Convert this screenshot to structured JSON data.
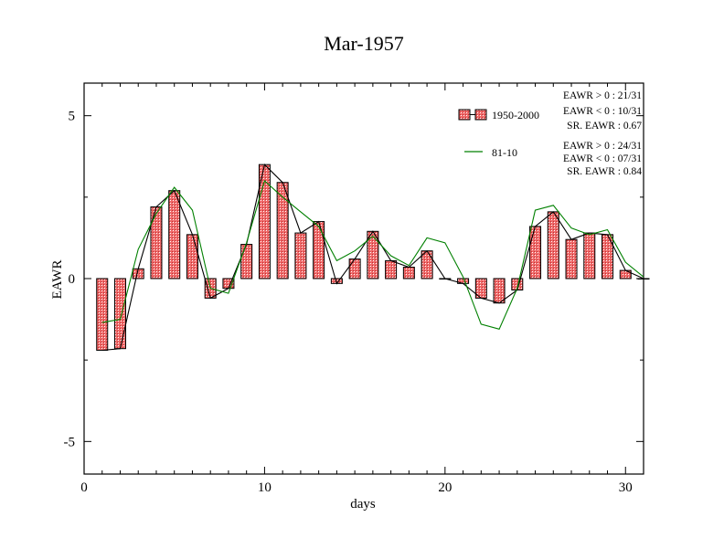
{
  "chart_data": {
    "type": "bar",
    "title": "Mar-1957",
    "xlabel": "days",
    "ylabel": "EAWR",
    "xlim": [
      0,
      31
    ],
    "ylim": [
      -6,
      6
    ],
    "x_ticks": [
      "0",
      "10",
      "20",
      "30"
    ],
    "y_ticks": [
      "-5",
      "0",
      "5"
    ],
    "x_tick_values": [
      0,
      10,
      20,
      30
    ],
    "y_tick_values": [
      -5,
      0,
      5
    ],
    "grid": false,
    "legend_position": "top-right",
    "x": [
      1,
      2,
      3,
      4,
      5,
      6,
      7,
      8,
      9,
      10,
      11,
      12,
      13,
      14,
      15,
      16,
      17,
      18,
      19,
      20,
      21,
      22,
      23,
      24,
      25,
      26,
      27,
      28,
      29,
      30,
      31
    ],
    "series": [
      {
        "name": "1950-2000",
        "kind": "bar+line",
        "color": "#e05a5a",
        "values": [
          -2.2,
          -2.15,
          0.3,
          2.2,
          2.7,
          1.35,
          -0.6,
          -0.3,
          1.05,
          3.5,
          2.95,
          1.4,
          1.75,
          -0.15,
          0.6,
          1.45,
          0.55,
          0.35,
          0.85,
          0.0,
          -0.15,
          -0.6,
          -0.75,
          -0.35,
          1.6,
          2.05,
          1.2,
          1.4,
          1.35,
          0.25,
          0.0
        ]
      },
      {
        "name": "81-10",
        "kind": "line",
        "color": "#008000",
        "values": [
          -1.35,
          -1.25,
          0.9,
          2.0,
          2.8,
          2.1,
          -0.3,
          -0.45,
          1.1,
          3.0,
          2.5,
          2.05,
          1.6,
          0.55,
          0.85,
          1.3,
          0.7,
          0.4,
          1.25,
          1.1,
          0.05,
          -1.4,
          -1.55,
          -0.3,
          2.1,
          2.25,
          1.55,
          1.35,
          1.5,
          0.5,
          0.05
        ]
      }
    ],
    "stats": [
      [
        "EAWR > 0 : 21/31",
        "EAWR < 0 : 10/31",
        "SR. EAWR :  0.67"
      ],
      [
        "EAWR > 0 : 24/31",
        "EAWR < 0 : 07/31",
        "SR. EAWR :  0.84"
      ]
    ]
  }
}
